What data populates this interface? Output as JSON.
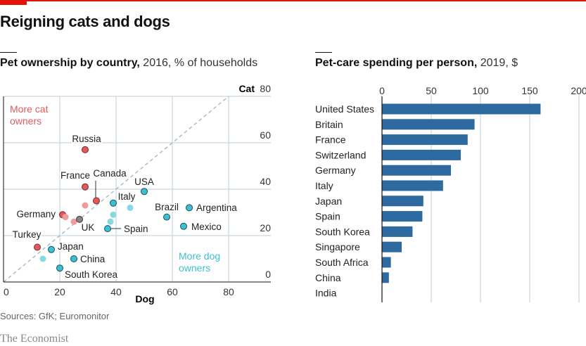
{
  "header": {
    "title": "Reigning cats and dogs",
    "source": "Sources: GfK; Euromonitor",
    "brand": "The Economist"
  },
  "colors": {
    "accent": "#e3120b",
    "cat": "#e05a5c",
    "cat_light": "#f09a9a",
    "dog": "#3cbfd1",
    "dog_light": "#86d8e5",
    "uk": "#8d8088",
    "bar": "#2d6a9f"
  },
  "chart_data": [
    {
      "type": "scatter",
      "title": "Pet ownership by country,",
      "subtitle": "2016, % of households",
      "xlabel": "Dog",
      "ylabel": "Cat",
      "xlim": [
        0,
        95
      ],
      "ylim": [
        0,
        80
      ],
      "xticks": [
        "0",
        "20",
        "40",
        "60",
        "80"
      ],
      "yticks": [
        "0",
        "20",
        "40",
        "60",
        "80"
      ],
      "grid": true,
      "diagonal": "y = x (dashed)",
      "annotations": {
        "cat_side": [
          "More cat",
          "owners"
        ],
        "dog_side": [
          "More dog",
          "owners"
        ]
      },
      "points": [
        {
          "label": "Russia",
          "dog": 29,
          "cat": 57,
          "group": "cat"
        },
        {
          "label": "France",
          "dog": 29,
          "cat": 41,
          "group": "cat"
        },
        {
          "label": "Canada",
          "dog": 33,
          "cat": 35,
          "group": "cat"
        },
        {
          "label": "",
          "dog": 29,
          "cat": 33,
          "group": "cat_light"
        },
        {
          "label": "Germany",
          "dog": 21,
          "cat": 29,
          "group": "cat"
        },
        {
          "label": "",
          "dog": 22,
          "cat": 28,
          "group": "cat_light"
        },
        {
          "label": "",
          "dog": 25,
          "cat": 26,
          "group": "cat_light"
        },
        {
          "label": "UK",
          "dog": 27,
          "cat": 27,
          "group": "uk"
        },
        {
          "label": "Turkey",
          "dog": 12,
          "cat": 15,
          "group": "cat"
        },
        {
          "label": "Japan",
          "dog": 17,
          "cat": 14,
          "group": "dog"
        },
        {
          "label": "",
          "dog": 14,
          "cat": 10,
          "group": "dog_light"
        },
        {
          "label": "China",
          "dog": 25,
          "cat": 10,
          "group": "dog"
        },
        {
          "label": "South Korea",
          "dog": 20,
          "cat": 6,
          "group": "dog"
        },
        {
          "label": "Spain",
          "dog": 37,
          "cat": 23,
          "group": "dog"
        },
        {
          "label": "",
          "dog": 38,
          "cat": 26,
          "group": "dog_light"
        },
        {
          "label": "",
          "dog": 39,
          "cat": 29,
          "group": "dog_light"
        },
        {
          "label": "Italy",
          "dog": 39,
          "cat": 34,
          "group": "dog"
        },
        {
          "label": "",
          "dog": 45,
          "cat": 32,
          "group": "dog_light"
        },
        {
          "label": "USA",
          "dog": 50,
          "cat": 39,
          "group": "dog"
        },
        {
          "label": "Brazil",
          "dog": 58,
          "cat": 28,
          "group": "dog"
        },
        {
          "label": "Argentina",
          "dog": 66,
          "cat": 32,
          "group": "dog"
        },
        {
          "label": "Mexico",
          "dog": 64,
          "cat": 24,
          "group": "dog"
        }
      ]
    },
    {
      "type": "bar",
      "orientation": "horizontal",
      "title": "Pet-care spending per person,",
      "subtitle": "2019, $",
      "xlim": [
        0,
        200
      ],
      "xticks": [
        "0",
        "50",
        "100",
        "150",
        "200"
      ],
      "grid": true,
      "categories": [
        "United States",
        "Britain",
        "France",
        "Switzerland",
        "Germany",
        "Italy",
        "Japan",
        "Spain",
        "South Korea",
        "Singapore",
        "South Africa",
        "China",
        "India"
      ],
      "values": [
        161,
        94,
        87,
        80,
        70,
        62,
        42,
        41,
        31,
        20,
        9,
        7,
        0
      ]
    }
  ]
}
